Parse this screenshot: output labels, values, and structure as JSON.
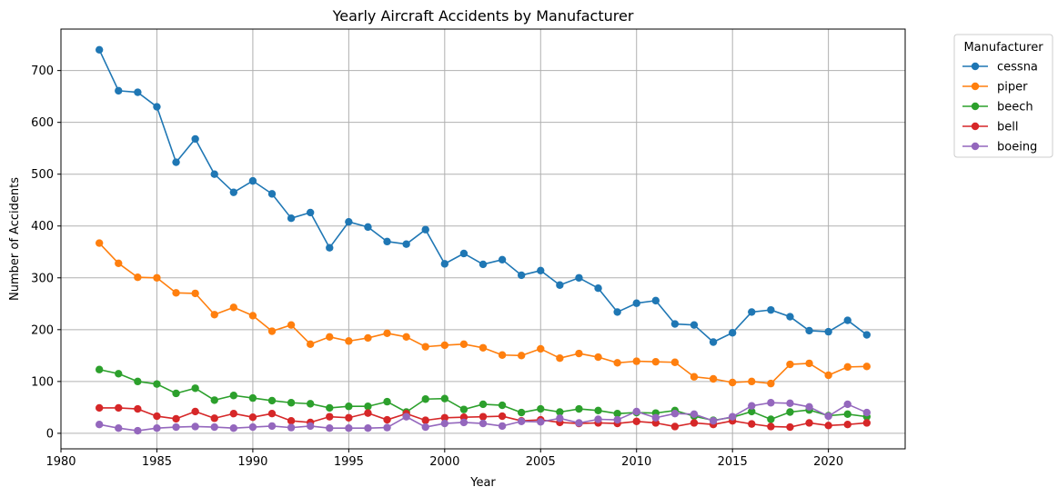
{
  "chart_data": {
    "type": "line",
    "title": "Yearly Aircraft Accidents by Manufacturer",
    "xlabel": "Year",
    "ylabel": "Number of Accidents",
    "xlim": [
      1980,
      2024
    ],
    "ylim": [
      -30,
      780
    ],
    "xticks": [
      1980,
      1985,
      1990,
      1995,
      2000,
      2005,
      2010,
      2015,
      2020
    ],
    "yticks": [
      0,
      100,
      200,
      300,
      400,
      500,
      600,
      700
    ],
    "grid": true,
    "legend_title": "Manufacturer",
    "legend_position": "outside-top-right",
    "x": [
      1982,
      1983,
      1984,
      1985,
      1986,
      1987,
      1988,
      1989,
      1990,
      1991,
      1992,
      1993,
      1994,
      1995,
      1996,
      1997,
      1998,
      1999,
      2000,
      2001,
      2002,
      2003,
      2004,
      2005,
      2006,
      2007,
      2008,
      2009,
      2010,
      2011,
      2012,
      2013,
      2014,
      2015,
      2016,
      2017,
      2018,
      2019,
      2020,
      2021,
      2022
    ],
    "series": [
      {
        "name": "cessna",
        "color": "#1f77b4",
        "values": [
          740,
          661,
          658,
          630,
          523,
          568,
          500,
          465,
          487,
          462,
          415,
          426,
          358,
          408,
          398,
          370,
          365,
          393,
          327,
          347,
          326,
          335,
          305,
          314,
          286,
          300,
          280,
          234,
          251,
          256,
          211,
          209,
          176,
          194,
          234,
          238,
          225,
          198,
          196,
          218,
          190
        ]
      },
      {
        "name": "piper",
        "color": "#ff7f0e",
        "values": [
          367,
          328,
          301,
          300,
          271,
          270,
          229,
          243,
          227,
          197,
          209,
          172,
          186,
          178,
          184,
          193,
          186,
          167,
          170,
          172,
          165,
          151,
          150,
          163,
          145,
          154,
          147,
          136,
          139,
          138,
          137,
          109,
          105,
          98,
          100,
          96,
          133,
          135,
          112,
          128,
          129
        ]
      },
      {
        "name": "beech",
        "color": "#2ca02c",
        "values": [
          123,
          115,
          100,
          95,
          77,
          87,
          64,
          73,
          68,
          63,
          59,
          57,
          49,
          52,
          52,
          61,
          41,
          66,
          67,
          46,
          56,
          54,
          40,
          47,
          41,
          47,
          44,
          38,
          40,
          39,
          44,
          33,
          25,
          31,
          42,
          27,
          41,
          45,
          34,
          37,
          32
        ]
      },
      {
        "name": "bell",
        "color": "#d62728",
        "values": [
          49,
          49,
          47,
          33,
          28,
          42,
          29,
          38,
          31,
          38,
          24,
          21,
          32,
          30,
          39,
          26,
          38,
          25,
          30,
          31,
          32,
          33,
          24,
          26,
          21,
          19,
          20,
          19,
          23,
          20,
          13,
          20,
          17,
          24,
          18,
          13,
          12,
          20,
          15,
          17,
          20
        ]
      },
      {
        "name": "boeing",
        "color": "#9467bd",
        "values": [
          17,
          10,
          5,
          10,
          12,
          13,
          12,
          10,
          12,
          14,
          11,
          14,
          10,
          10,
          10,
          11,
          32,
          12,
          19,
          21,
          19,
          14,
          23,
          22,
          29,
          20,
          27,
          26,
          42,
          30,
          38,
          37,
          24,
          32,
          53,
          59,
          58,
          51,
          33,
          56,
          40
        ]
      }
    ]
  }
}
